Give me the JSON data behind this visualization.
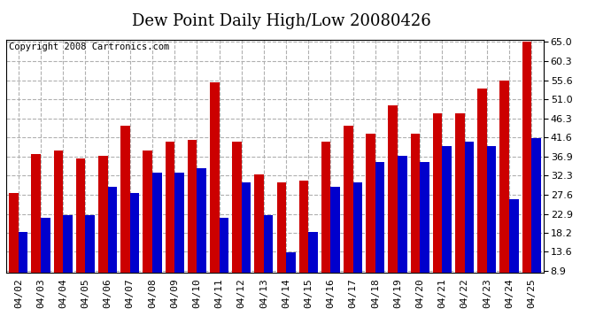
{
  "title": "Dew Point Daily High/Low 20080426",
  "copyright": "Copyright 2008 Cartronics.com",
  "dates": [
    "04/02",
    "04/03",
    "04/04",
    "04/05",
    "04/06",
    "04/07",
    "04/08",
    "04/09",
    "04/10",
    "04/11",
    "04/12",
    "04/13",
    "04/14",
    "04/15",
    "04/16",
    "04/17",
    "04/18",
    "04/19",
    "04/20",
    "04/21",
    "04/22",
    "04/23",
    "04/24",
    "04/25"
  ],
  "highs": [
    28.0,
    37.5,
    38.5,
    36.5,
    37.0,
    44.5,
    38.5,
    40.5,
    41.0,
    55.0,
    40.5,
    32.5,
    30.5,
    31.0,
    40.5,
    44.5,
    42.5,
    49.5,
    42.5,
    47.5,
    47.5,
    53.5,
    55.5,
    65.0
  ],
  "lows": [
    18.5,
    22.0,
    22.5,
    22.5,
    29.5,
    28.0,
    33.0,
    33.0,
    34.0,
    22.0,
    30.5,
    22.5,
    13.5,
    18.5,
    29.5,
    30.5,
    35.5,
    37.0,
    35.5,
    39.5,
    40.5,
    39.5,
    26.5,
    41.5
  ],
  "high_color": "#cc0000",
  "low_color": "#0000cc",
  "background_color": "#ffffff",
  "plot_background": "#ffffff",
  "grid_color": "#b0b0b0",
  "yticks": [
    8.9,
    13.6,
    18.2,
    22.9,
    27.6,
    32.3,
    36.9,
    41.6,
    46.3,
    51.0,
    55.6,
    60.3,
    65.0
  ],
  "ymin": 8.9,
  "ymax": 65.0,
  "title_fontsize": 13,
  "tick_fontsize": 8,
  "copyright_fontsize": 7.5
}
